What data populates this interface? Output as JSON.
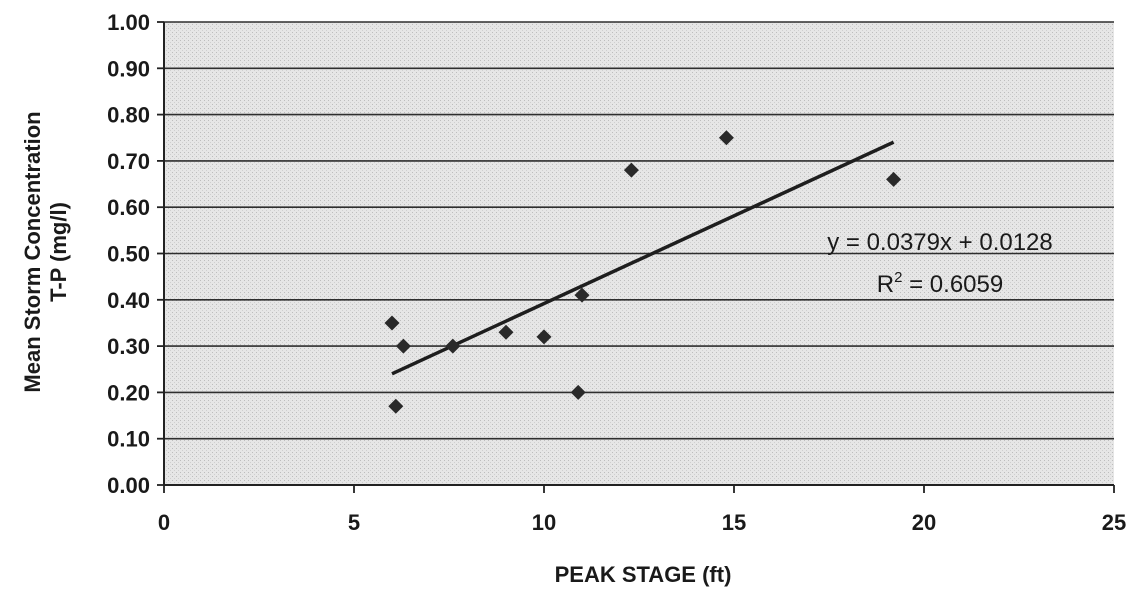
{
  "chart_data": {
    "type": "scatter",
    "title": "",
    "xlabel": "PEAK STAGE (ft)",
    "ylabel_lines": [
      "Mean Storm Concentration",
      "T-P (mg/l)"
    ],
    "xlim": [
      0,
      25
    ],
    "ylim": [
      0,
      1
    ],
    "x_ticks": [
      "0",
      "5",
      "10",
      "15",
      "20",
      "25"
    ],
    "y_ticks": [
      "0.00",
      "0.10",
      "0.20",
      "0.30",
      "0.40",
      "0.50",
      "0.60",
      "0.70",
      "0.80",
      "0.90",
      "1.00"
    ],
    "grid": "horizontal",
    "points": [
      {
        "x": 6.0,
        "y": 0.35
      },
      {
        "x": 6.1,
        "y": 0.17
      },
      {
        "x": 6.3,
        "y": 0.3
      },
      {
        "x": 7.6,
        "y": 0.3
      },
      {
        "x": 9.0,
        "y": 0.33
      },
      {
        "x": 10.0,
        "y": 0.32
      },
      {
        "x": 10.9,
        "y": 0.2
      },
      {
        "x": 11.0,
        "y": 0.41
      },
      {
        "x": 12.3,
        "y": 0.68
      },
      {
        "x": 14.8,
        "y": 0.75
      },
      {
        "x": 19.2,
        "y": 0.66
      }
    ],
    "trendline": {
      "slope": 0.0379,
      "intercept": 0.0128,
      "x_range": [
        6.0,
        19.2
      ],
      "equation": "y = 0.0379x + 0.0128",
      "r2_prefix": "R",
      "r2_sup": "2",
      "r2_value": " = 0.6059"
    },
    "colors": {
      "plot_bg": "#e4e4e4",
      "plot_bg_dot": "#c8c8c8",
      "gridline": "#2e2e2e",
      "axis": "#222222",
      "marker": "#2a2a2a",
      "trendline": "#1e1e1e",
      "text": "#1a1a1a"
    }
  }
}
